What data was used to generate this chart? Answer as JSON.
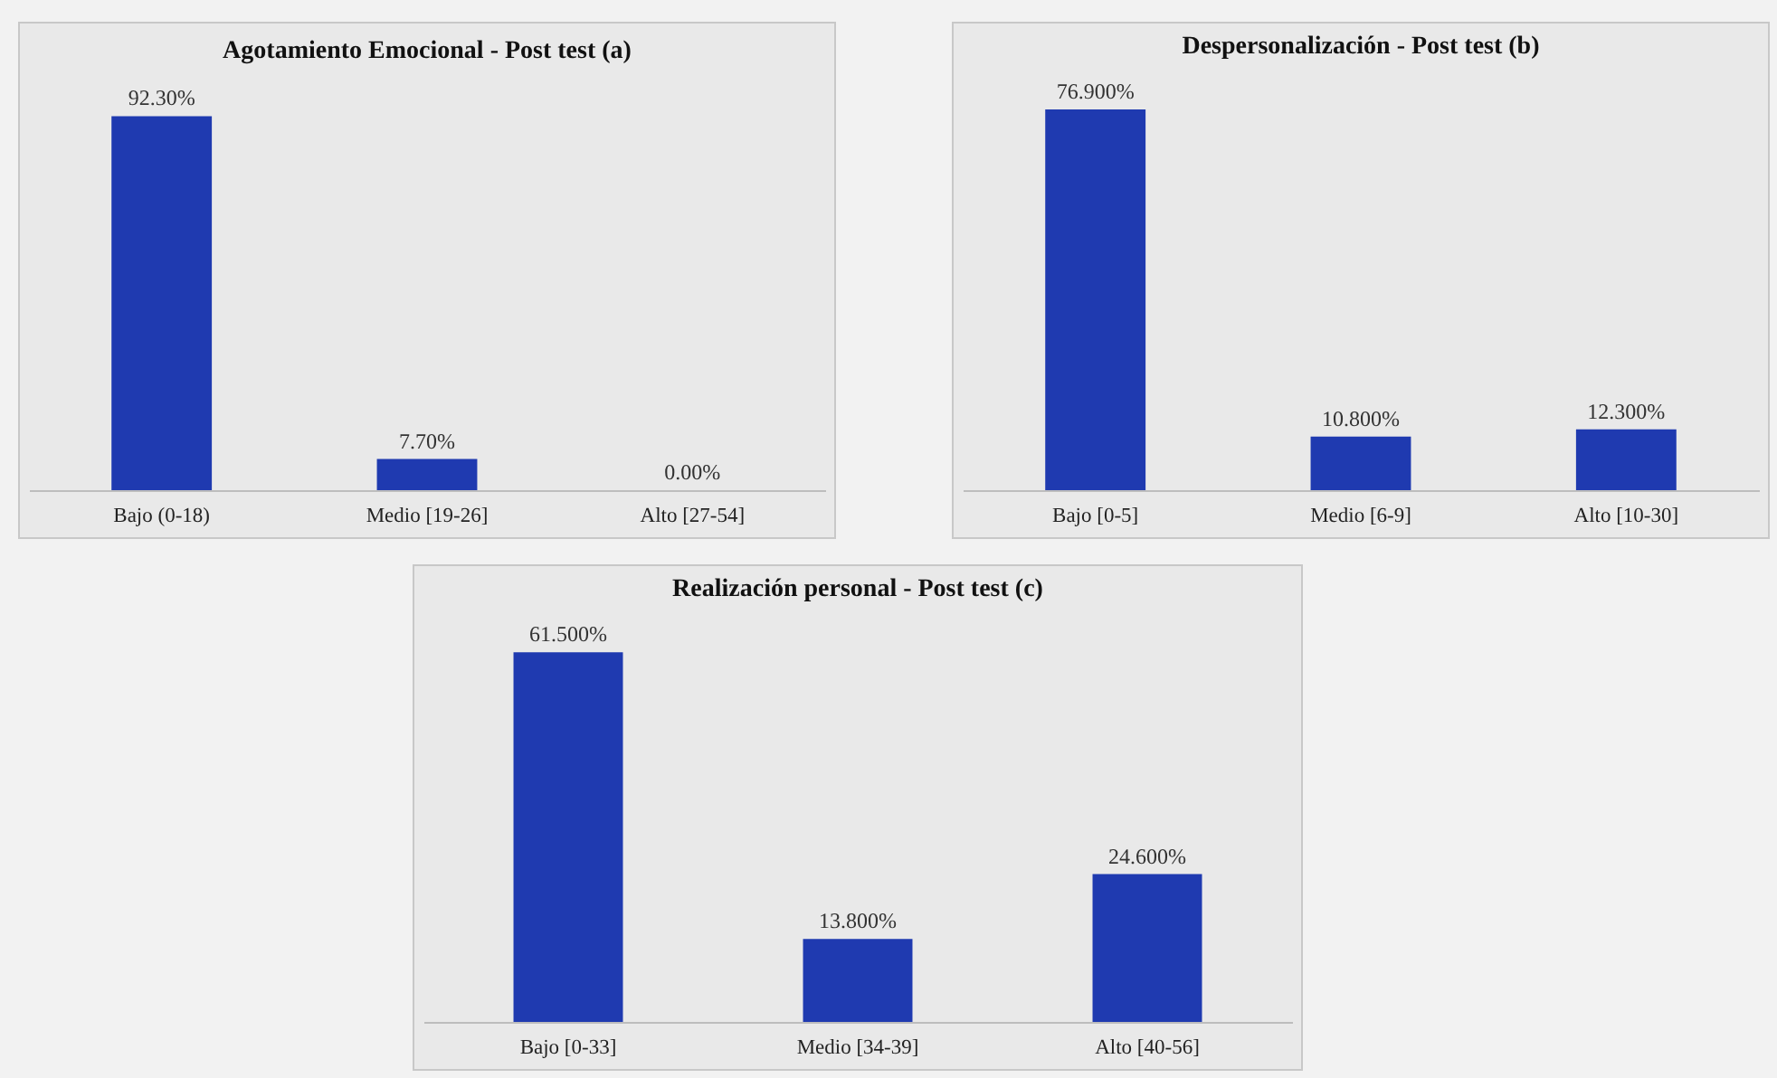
{
  "chart_data": [
    {
      "type": "bar",
      "title": "Agotamiento Emocional - Post test (a)",
      "categories": [
        "Bajo (0-18)",
        "Medio [19-26]",
        "Alto [27-54]"
      ],
      "values": [
        92.3,
        7.7,
        0
      ],
      "value_labels": [
        "92.30%",
        "7.70%",
        "0.00%"
      ],
      "color": "#1f3ab0"
    },
    {
      "type": "bar",
      "title": "Despersonalización - Post test (b)",
      "categories": [
        "Bajo [0-5]",
        "Medio [6-9]",
        "Alto [10-30]"
      ],
      "values": [
        76.9,
        10.8,
        12.3
      ],
      "value_labels": [
        "76.900%",
        "10.800%",
        "12.300%"
      ],
      "color": "#1f3ab0"
    },
    {
      "type": "bar",
      "title": "Realización personal - Post test (c)",
      "categories": [
        "Bajo [0-33]",
        "Medio [34-39]",
        "Alto [40-56]"
      ],
      "values": [
        61.5,
        13.8,
        24.6
      ],
      "value_labels": [
        "61.500%",
        "13.800%",
        "24.600%"
      ],
      "color": "#1f3ab0"
    }
  ]
}
